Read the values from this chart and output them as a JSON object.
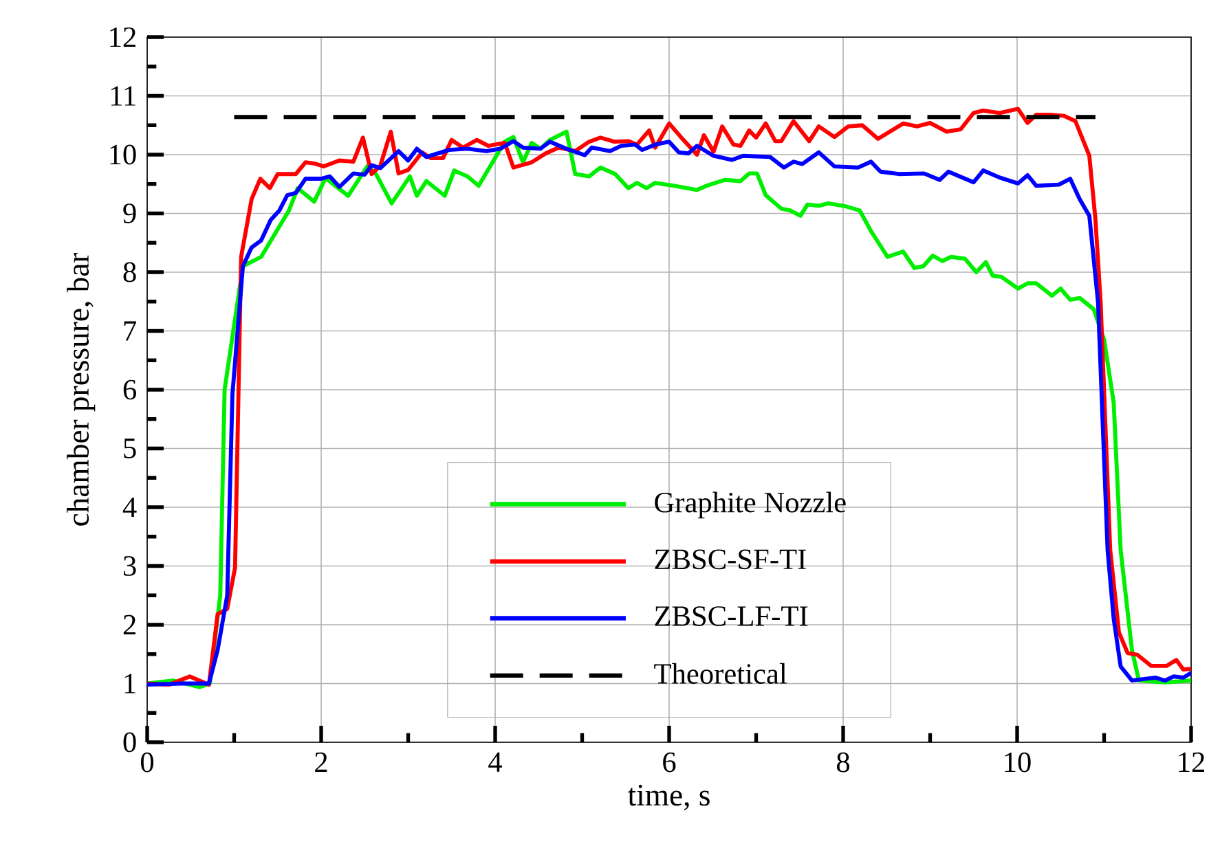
{
  "chart_data": {
    "type": "line",
    "xlabel": "time, s",
    "ylabel": "chamber pressure, bar",
    "xlim": [
      0,
      12
    ],
    "ylim": [
      0,
      12
    ],
    "xticks": [
      0,
      2,
      4,
      6,
      8,
      10,
      12
    ],
    "yticks": [
      0,
      1,
      2,
      3,
      4,
      5,
      6,
      7,
      8,
      9,
      10,
      11,
      12
    ],
    "grid": true,
    "legend": "bottom",
    "marker": "none",
    "series": [
      {
        "name": "Graphite Nozzle",
        "color": "#00ee00",
        "line_style": "solid",
        "x": [
          0,
          0.3,
          0.6,
          0.72,
          0.84,
          0.89,
          1.1,
          1.31,
          1.63,
          1.73,
          1.92,
          2.05,
          2.31,
          2.53,
          2.63,
          2.81,
          3.02,
          3.1,
          3.21,
          3.42,
          3.53,
          3.68,
          3.81,
          3.95,
          4.11,
          4.21,
          4.32,
          4.42,
          4.52,
          4.63,
          4.82,
          4.92,
          5.08,
          5.21,
          5.38,
          5.53,
          5.63,
          5.74,
          5.84,
          6.06,
          6.32,
          6.43,
          6.64,
          6.82,
          6.92,
          7.01,
          7.11,
          7.29,
          7.39,
          7.51,
          7.59,
          7.72,
          7.83,
          8.03,
          8.19,
          8.32,
          8.51,
          8.69,
          8.82,
          8.92,
          9.03,
          9.14,
          9.24,
          9.4,
          9.53,
          9.64,
          9.72,
          9.82,
          10.01,
          10.12,
          10.22,
          10.4,
          10.5,
          10.61,
          10.72,
          10.88,
          11.0,
          11.11,
          11.19,
          11.32,
          11.4,
          11.7,
          12.0
        ],
        "values": [
          1.0,
          1.05,
          0.94,
          1.0,
          2.5,
          6.0,
          8.1,
          8.26,
          9.05,
          9.43,
          9.2,
          9.6,
          9.3,
          9.8,
          9.67,
          9.17,
          9.63,
          9.3,
          9.55,
          9.3,
          9.73,
          9.63,
          9.47,
          9.82,
          10.22,
          10.3,
          9.87,
          10.2,
          10.1,
          10.25,
          10.39,
          9.67,
          9.63,
          9.78,
          9.67,
          9.43,
          9.52,
          9.43,
          9.52,
          9.47,
          9.4,
          9.47,
          9.57,
          9.55,
          9.68,
          9.68,
          9.31,
          9.08,
          9.05,
          8.96,
          9.15,
          9.13,
          9.17,
          9.12,
          9.05,
          8.7,
          8.26,
          8.35,
          8.07,
          8.1,
          8.28,
          8.19,
          8.26,
          8.23,
          8.0,
          8.17,
          7.94,
          7.92,
          7.72,
          7.81,
          7.81,
          7.6,
          7.72,
          7.53,
          7.56,
          7.37,
          6.85,
          5.78,
          3.27,
          1.57,
          1.05,
          1.02,
          1.05
        ]
      },
      {
        "name": "ZBSC-SF-TI",
        "color": "#ff0000",
        "line_style": "solid",
        "x": [
          0,
          0.25,
          0.49,
          0.71,
          0.81,
          0.92,
          1.01,
          1.08,
          1.2,
          1.3,
          1.41,
          1.5,
          1.71,
          1.82,
          1.92,
          2.03,
          2.21,
          2.37,
          2.48,
          2.58,
          2.68,
          2.8,
          2.89,
          3.0,
          3.16,
          3.26,
          3.4,
          3.5,
          3.63,
          3.79,
          3.92,
          4.11,
          4.21,
          4.42,
          4.58,
          4.73,
          4.92,
          5.08,
          5.21,
          5.37,
          5.53,
          5.63,
          5.77,
          5.84,
          6.0,
          6.14,
          6.32,
          6.4,
          6.51,
          6.61,
          6.74,
          6.82,
          6.92,
          7.0,
          7.11,
          7.22,
          7.29,
          7.43,
          7.61,
          7.72,
          7.9,
          8.06,
          8.22,
          8.4,
          8.69,
          8.85,
          9.0,
          9.19,
          9.35,
          9.5,
          9.61,
          9.8,
          10.01,
          10.12,
          10.22,
          10.38,
          10.54,
          10.67,
          10.83,
          10.9,
          10.96,
          11.07,
          11.17,
          11.27,
          11.38,
          11.54,
          11.72,
          11.83,
          11.91,
          12.0
        ],
        "values": [
          1.0,
          0.98,
          1.12,
          0.98,
          2.18,
          2.27,
          2.97,
          8.26,
          9.24,
          9.59,
          9.43,
          9.67,
          9.67,
          9.87,
          9.85,
          9.8,
          9.9,
          9.88,
          10.29,
          9.67,
          9.81,
          10.39,
          9.68,
          9.74,
          10.04,
          9.94,
          9.94,
          10.25,
          10.12,
          10.25,
          10.15,
          10.2,
          9.78,
          9.87,
          10.02,
          10.12,
          10.06,
          10.22,
          10.29,
          10.22,
          10.23,
          10.17,
          10.41,
          10.12,
          10.53,
          10.29,
          10.0,
          10.33,
          10.05,
          10.48,
          10.17,
          10.15,
          10.41,
          10.29,
          10.53,
          10.23,
          10.23,
          10.57,
          10.23,
          10.48,
          10.3,
          10.48,
          10.5,
          10.27,
          10.53,
          10.48,
          10.54,
          10.39,
          10.43,
          10.71,
          10.75,
          10.71,
          10.78,
          10.54,
          10.68,
          10.68,
          10.66,
          10.57,
          9.98,
          8.9,
          7.49,
          3.27,
          1.87,
          1.52,
          1.49,
          1.3,
          1.3,
          1.4,
          1.24,
          1.25
        ]
      },
      {
        "name": "ZBSC-LF-TI",
        "color": "#0000ff",
        "line_style": "solid",
        "x": [
          0,
          0.4,
          0.71,
          0.81,
          0.92,
          0.98,
          1.1,
          1.2,
          1.31,
          1.42,
          1.52,
          1.61,
          1.71,
          1.82,
          2.0,
          2.1,
          2.21,
          2.37,
          2.5,
          2.58,
          2.68,
          2.89,
          3.0,
          3.1,
          3.21,
          3.47,
          3.68,
          3.9,
          4.06,
          4.21,
          4.32,
          4.52,
          4.63,
          4.82,
          5.03,
          5.11,
          5.32,
          5.45,
          5.61,
          5.69,
          5.84,
          6.0,
          6.11,
          6.22,
          6.32,
          6.51,
          6.72,
          6.85,
          7.16,
          7.32,
          7.43,
          7.53,
          7.72,
          7.9,
          8.17,
          8.32,
          8.43,
          8.64,
          8.93,
          9.11,
          9.21,
          9.5,
          9.61,
          9.8,
          10.01,
          10.12,
          10.22,
          10.48,
          10.61,
          10.72,
          10.83,
          10.93,
          11.04,
          11.11,
          11.19,
          11.32,
          11.59,
          11.7,
          11.8,
          11.91,
          12.0
        ],
        "values": [
          0.98,
          1.0,
          1.0,
          1.57,
          2.5,
          5.92,
          8.1,
          8.42,
          8.54,
          8.89,
          9.05,
          9.31,
          9.35,
          9.59,
          9.59,
          9.63,
          9.45,
          9.68,
          9.66,
          9.82,
          9.77,
          10.06,
          9.9,
          10.1,
          9.96,
          10.08,
          10.1,
          10.06,
          10.1,
          10.23,
          10.12,
          10.1,
          10.22,
          10.1,
          9.99,
          10.12,
          10.06,
          10.15,
          10.17,
          10.08,
          10.17,
          10.22,
          10.04,
          10.02,
          10.15,
          9.98,
          9.91,
          9.98,
          9.96,
          9.78,
          9.88,
          9.84,
          10.04,
          9.8,
          9.78,
          9.88,
          9.71,
          9.67,
          9.68,
          9.57,
          9.71,
          9.53,
          9.73,
          9.61,
          9.51,
          9.65,
          9.47,
          9.49,
          9.59,
          9.24,
          8.96,
          7.49,
          3.27,
          2.1,
          1.29,
          1.05,
          1.1,
          1.05,
          1.12,
          1.1,
          1.18
        ]
      },
      {
        "name": "Theoretical",
        "color": "#000000",
        "line_style": "dashed",
        "x": [
          1.0,
          10.9
        ],
        "values": [
          10.64,
          10.64
        ]
      }
    ]
  }
}
